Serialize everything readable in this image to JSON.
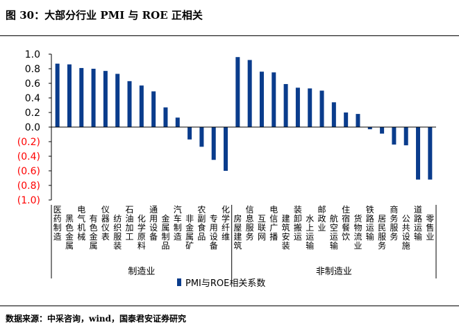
{
  "figure": {
    "title": "图 30：大部分行业 PMI 与 ROE 正相关",
    "source": "数据来源：中采咨询，wind，国泰君安证券研究"
  },
  "colors": {
    "bar": "#0a3c8c",
    "negative_tick": "#ff0000",
    "axis": "#000000"
  },
  "chart_data": {
    "type": "bar",
    "title": "",
    "xlabel": "",
    "ylabel": "",
    "ylim": [
      -1.0,
      1.0
    ],
    "yticks": [
      1.0,
      0.8,
      0.6,
      0.4,
      0.2,
      0.0,
      -0.2,
      -0.4,
      -0.6,
      -0.8,
      -1.0
    ],
    "ytick_labels": [
      "1.0",
      "0.8",
      "0.6",
      "0.4",
      "0.2",
      "0.0",
      "(0.2)",
      "(0.4)",
      "(0.6)",
      "(0.8)",
      "(1.0)"
    ],
    "legend": {
      "position": "bottom"
    },
    "series": [
      {
        "name": "PMI与ROE相关系数",
        "values": [
          0.87,
          0.86,
          0.81,
          0.8,
          0.77,
          0.73,
          0.63,
          0.57,
          0.49,
          0.27,
          0.13,
          -0.17,
          -0.27,
          -0.45,
          -0.6,
          0.96,
          0.92,
          0.76,
          0.75,
          0.59,
          0.54,
          0.53,
          0.5,
          0.34,
          0.2,
          0.18,
          -0.03,
          -0.09,
          -0.24,
          -0.25,
          -0.72,
          -0.72
        ]
      }
    ],
    "categories": [
      "医药制造",
      "黑色金属",
      "电气机械",
      "有色金属",
      "仪器仪表",
      "纺织服装",
      "石油加工",
      "化学原料",
      "通用设备",
      "金属制品",
      "汽车制造",
      "非金属矿",
      "农副食品",
      "专用设备",
      "化学纤维",
      "房屋建筑",
      "信息服务",
      "互联网",
      "电信广播",
      "建筑安装",
      "装卸搬运",
      "水上运输",
      "邮政业",
      "航空运输",
      "住宿餐饮",
      "货物流业",
      "铁路运输",
      "居民服务",
      "商务服务",
      "公共设施",
      "道路运输",
      "零售业"
    ],
    "groups": [
      {
        "label": "制造业",
        "count": 15
      },
      {
        "label": "非制造业",
        "count": 17
      }
    ]
  }
}
